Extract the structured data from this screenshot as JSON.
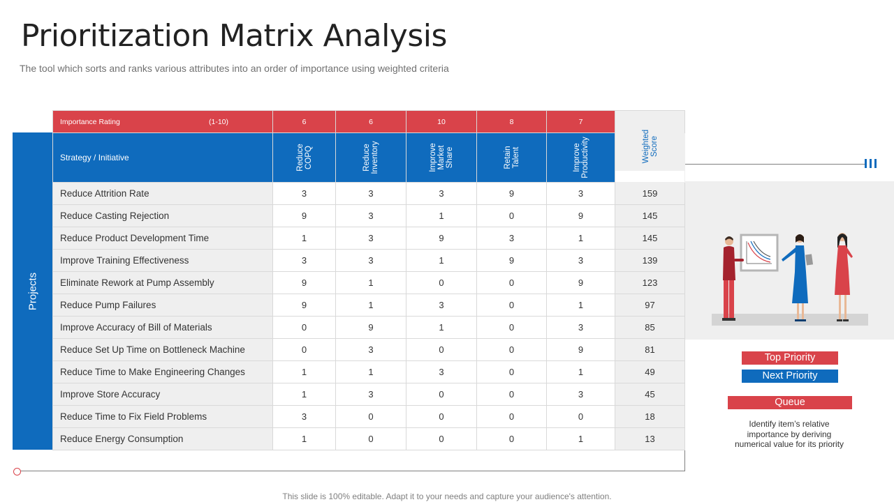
{
  "title": "Prioritization Matrix Analysis",
  "subtitle": "The tool which sorts and ranks various attributes into an order of importance using weighted criteria",
  "colors": {
    "red": "#d9434a",
    "blue": "#0f6bbd",
    "gray": "#efefef"
  },
  "table": {
    "group_label": "Projects",
    "importance_label": "Importance Rating",
    "importance_range": "(1-10)",
    "strategy_label": "Strategy / Initiative",
    "weighted_label": "Weighted\nScore",
    "criteria": [
      {
        "name": "Reduce\nCOPQ",
        "rating": "6"
      },
      {
        "name": "Reduce\nInventory",
        "rating": "6"
      },
      {
        "name": "Improve\nMarket\nShare",
        "rating": "10"
      },
      {
        "name": "Retain\nTalent",
        "rating": "8"
      },
      {
        "name": "Improve\nProductivity",
        "rating": "7"
      }
    ],
    "rows": [
      {
        "name": "Reduce Attrition Rate",
        "values": [
          "3",
          "3",
          "3",
          "9",
          "3"
        ],
        "score": "159"
      },
      {
        "name": "Reduce Casting Rejection",
        "values": [
          "9",
          "3",
          "1",
          "0",
          "9"
        ],
        "score": "145"
      },
      {
        "name": "Reduce Product Development  Time",
        "values": [
          "1",
          "3",
          "9",
          "3",
          "1"
        ],
        "score": "145"
      },
      {
        "name": "Improve  Training   Effectiveness",
        "values": [
          "3",
          "3",
          "1",
          "9",
          "3"
        ],
        "score": "139"
      },
      {
        "name": "Eliminate Rework  at Pump Assembly",
        "values": [
          "9",
          "1",
          "0",
          "0",
          "9"
        ],
        "score": "123"
      },
      {
        "name": "Reduce Pump Failures",
        "values": [
          "9",
          "1",
          "3",
          "0",
          "1"
        ],
        "score": "97"
      },
      {
        "name": "Improve  Accuracy of Bill of Materials",
        "values": [
          "0",
          "9",
          "1",
          "0",
          "3"
        ],
        "score": "85"
      },
      {
        "name": "Reduce Set Up Time  on Bottleneck Machine",
        "values": [
          "0",
          "3",
          "0",
          "0",
          "9"
        ],
        "score": "81"
      },
      {
        "name": "Reduce Time  to Make Engineering  Changes",
        "values": [
          "1",
          "1",
          "3",
          "0",
          "1"
        ],
        "score": "49"
      },
      {
        "name": "Improve  Store Accuracy",
        "values": [
          "1",
          "3",
          "0",
          "0",
          "3"
        ],
        "score": "45"
      },
      {
        "name": "Reduce Time  to Fix Field Problems",
        "values": [
          "3",
          "0",
          "0",
          "0",
          "0"
        ],
        "score": "18"
      },
      {
        "name": "Reduce Energy Consumption",
        "values": [
          "1",
          "0",
          "0",
          "0",
          "1"
        ],
        "score": "13"
      }
    ]
  },
  "legend": {
    "top_priority": "Top Priority",
    "next_priority": "Next Priority",
    "queue": "Queue"
  },
  "note": "Identify item’s relative importance by deriving numerical value for its priority",
  "footer": "This slide is 100% editable. Adapt it to your needs and capture your audience's attention."
}
